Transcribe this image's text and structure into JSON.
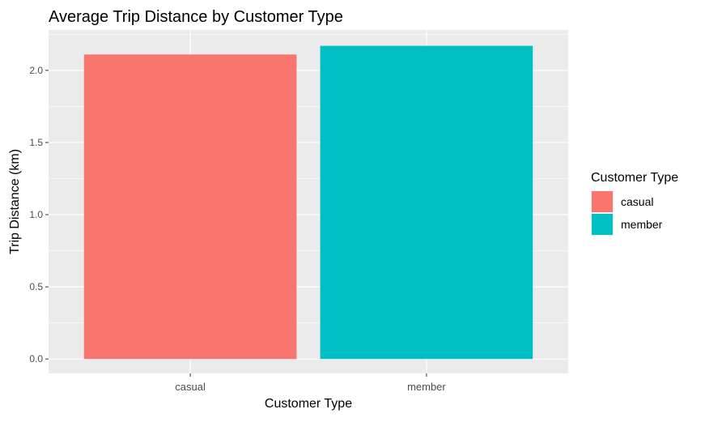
{
  "chart_data": {
    "type": "bar",
    "title": "Average Trip Distance by Customer Type",
    "xlabel": "Customer Type",
    "ylabel": "Trip Distance (km)",
    "categories": [
      "casual",
      "member"
    ],
    "values": [
      2.11,
      2.17
    ],
    "ylim": [
      -0.1,
      2.28
    ],
    "yticks": [
      0.0,
      0.5,
      1.0,
      1.5,
      2.0
    ],
    "ytick_labels": [
      "0.0",
      "0.5",
      "1.0",
      "1.5",
      "2.0"
    ],
    "grid": true,
    "legend": {
      "title": "Customer Type",
      "placement": "right",
      "entries": [
        "casual",
        "member"
      ]
    },
    "colors": [
      "#F8766D",
      "#00BFC4"
    ],
    "panel_background": "#EBEBEB",
    "grid_color": "#FFFFFF"
  }
}
